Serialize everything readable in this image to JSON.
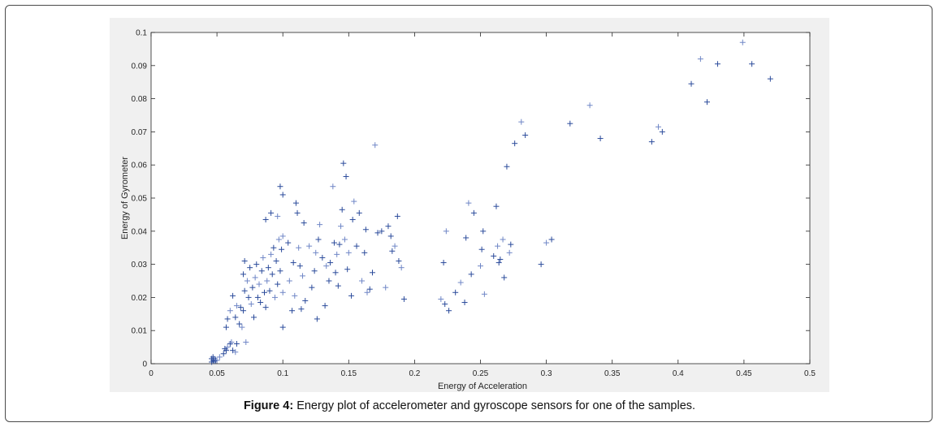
{
  "caption": {
    "label": "Figure 4:",
    "text": " Energy plot of accelerometer and gyroscope sensors for one of the samples."
  },
  "colors": {
    "marker": "#2b4b9b",
    "marker_light": "#6f86c6",
    "axis": "#262626",
    "panel_bg": "#f0f0f0",
    "plot_bg": "#ffffff"
  },
  "chart_data": {
    "type": "scatter",
    "xlabel": "Energy of Acceleration",
    "ylabel": "Energy of Gyrometer",
    "xlim": [
      0,
      0.5
    ],
    "ylim": [
      0,
      0.1
    ],
    "xticks": [
      "0",
      "0.05",
      "0.1",
      "0.15",
      "0.2",
      "0.25",
      "0.3",
      "0.35",
      "0.4",
      "0.45",
      "0.5"
    ],
    "yticks": [
      "0",
      "0.01",
      "0.02",
      "0.03",
      "0.04",
      "0.05",
      "0.06",
      "0.07",
      "0.08",
      "0.09",
      "0.1"
    ],
    "grid": false,
    "marker": "+",
    "points": [
      [
        0.046,
        0.0005
      ],
      [
        0.047,
        0.001
      ],
      [
        0.048,
        0.0015
      ],
      [
        0.049,
        0.001
      ],
      [
        0.047,
        0.002
      ],
      [
        0.05,
        0.001
      ],
      [
        0.046,
        0.0015
      ],
      [
        0.048,
        0.0008
      ],
      [
        0.052,
        0.002
      ],
      [
        0.055,
        0.003
      ],
      [
        0.057,
        0.004
      ],
      [
        0.058,
        0.005
      ],
      [
        0.06,
        0.006
      ],
      [
        0.062,
        0.004
      ],
      [
        0.064,
        0.0035
      ],
      [
        0.065,
        0.006
      ],
      [
        0.056,
        0.0045
      ],
      [
        0.061,
        0.0065
      ],
      [
        0.057,
        0.011
      ],
      [
        0.058,
        0.0135
      ],
      [
        0.06,
        0.016
      ],
      [
        0.062,
        0.0205
      ],
      [
        0.064,
        0.014
      ],
      [
        0.065,
        0.0175
      ],
      [
        0.067,
        0.012
      ],
      [
        0.068,
        0.017
      ],
      [
        0.069,
        0.011
      ],
      [
        0.07,
        0.016
      ],
      [
        0.071,
        0.022
      ],
      [
        0.072,
        0.0065
      ],
      [
        0.07,
        0.027
      ],
      [
        0.071,
        0.031
      ],
      [
        0.073,
        0.025
      ],
      [
        0.074,
        0.02
      ],
      [
        0.075,
        0.029
      ],
      [
        0.076,
        0.018
      ],
      [
        0.077,
        0.023
      ],
      [
        0.078,
        0.014
      ],
      [
        0.079,
        0.026
      ],
      [
        0.08,
        0.03
      ],
      [
        0.081,
        0.02
      ],
      [
        0.082,
        0.024
      ],
      [
        0.083,
        0.0185
      ],
      [
        0.084,
        0.028
      ],
      [
        0.085,
        0.032
      ],
      [
        0.086,
        0.0215
      ],
      [
        0.087,
        0.017
      ],
      [
        0.088,
        0.025
      ],
      [
        0.089,
        0.029
      ],
      [
        0.09,
        0.022
      ],
      [
        0.091,
        0.033
      ],
      [
        0.092,
        0.027
      ],
      [
        0.093,
        0.035
      ],
      [
        0.094,
        0.02
      ],
      [
        0.095,
        0.031
      ],
      [
        0.096,
        0.024
      ],
      [
        0.097,
        0.0375
      ],
      [
        0.098,
        0.028
      ],
      [
        0.099,
        0.0345
      ],
      [
        0.1,
        0.0215
      ],
      [
        0.087,
        0.0435
      ],
      [
        0.091,
        0.0455
      ],
      [
        0.096,
        0.0445
      ],
      [
        0.098,
        0.0535
      ],
      [
        0.1,
        0.051
      ],
      [
        0.1,
        0.0385
      ],
      [
        0.1,
        0.011
      ],
      [
        0.104,
        0.0365
      ],
      [
        0.105,
        0.025
      ],
      [
        0.107,
        0.016
      ],
      [
        0.108,
        0.0305
      ],
      [
        0.109,
        0.0205
      ],
      [
        0.11,
        0.0485
      ],
      [
        0.111,
        0.0455
      ],
      [
        0.112,
        0.035
      ],
      [
        0.113,
        0.0295
      ],
      [
        0.114,
        0.0165
      ],
      [
        0.115,
        0.0265
      ],
      [
        0.116,
        0.0425
      ],
      [
        0.117,
        0.019
      ],
      [
        0.12,
        0.0355
      ],
      [
        0.122,
        0.023
      ],
      [
        0.124,
        0.028
      ],
      [
        0.125,
        0.0335
      ],
      [
        0.126,
        0.0135
      ],
      [
        0.127,
        0.0375
      ],
      [
        0.128,
        0.042
      ],
      [
        0.13,
        0.032
      ],
      [
        0.132,
        0.0175
      ],
      [
        0.133,
        0.0295
      ],
      [
        0.135,
        0.025
      ],
      [
        0.136,
        0.0305
      ],
      [
        0.138,
        0.0535
      ],
      [
        0.139,
        0.0365
      ],
      [
        0.14,
        0.0275
      ],
      [
        0.141,
        0.033
      ],
      [
        0.142,
        0.0235
      ],
      [
        0.143,
        0.036
      ],
      [
        0.144,
        0.0415
      ],
      [
        0.145,
        0.0465
      ],
      [
        0.146,
        0.0605
      ],
      [
        0.147,
        0.0375
      ],
      [
        0.148,
        0.0565
      ],
      [
        0.149,
        0.0285
      ],
      [
        0.15,
        0.0335
      ],
      [
        0.152,
        0.0205
      ],
      [
        0.153,
        0.0435
      ],
      [
        0.154,
        0.049
      ],
      [
        0.156,
        0.0355
      ],
      [
        0.158,
        0.0455
      ],
      [
        0.16,
        0.025
      ],
      [
        0.162,
        0.0335
      ],
      [
        0.163,
        0.0405
      ],
      [
        0.164,
        0.0215
      ],
      [
        0.166,
        0.0225
      ],
      [
        0.168,
        0.0275
      ],
      [
        0.17,
        0.066
      ],
      [
        0.172,
        0.0395
      ],
      [
        0.175,
        0.04
      ],
      [
        0.178,
        0.023
      ],
      [
        0.18,
        0.0415
      ],
      [
        0.182,
        0.0385
      ],
      [
        0.185,
        0.0355
      ],
      [
        0.187,
        0.0445
      ],
      [
        0.188,
        0.031
      ],
      [
        0.19,
        0.029
      ],
      [
        0.192,
        0.0195
      ],
      [
        0.183,
        0.034
      ],
      [
        0.22,
        0.0195
      ],
      [
        0.222,
        0.0305
      ],
      [
        0.223,
        0.018
      ],
      [
        0.224,
        0.04
      ],
      [
        0.226,
        0.016
      ],
      [
        0.231,
        0.0215
      ],
      [
        0.235,
        0.0245
      ],
      [
        0.238,
        0.0185
      ],
      [
        0.239,
        0.038
      ],
      [
        0.241,
        0.0485
      ],
      [
        0.243,
        0.027
      ],
      [
        0.245,
        0.0455
      ],
      [
        0.25,
        0.0295
      ],
      [
        0.251,
        0.0345
      ],
      [
        0.252,
        0.04
      ],
      [
        0.253,
        0.021
      ],
      [
        0.26,
        0.0325
      ],
      [
        0.262,
        0.0475
      ],
      [
        0.263,
        0.0355
      ],
      [
        0.264,
        0.0305
      ],
      [
        0.265,
        0.0315
      ],
      [
        0.267,
        0.0375
      ],
      [
        0.268,
        0.026
      ],
      [
        0.27,
        0.0595
      ],
      [
        0.272,
        0.0335
      ],
      [
        0.273,
        0.036
      ],
      [
        0.276,
        0.0665
      ],
      [
        0.281,
        0.073
      ],
      [
        0.284,
        0.069
      ],
      [
        0.296,
        0.03
      ],
      [
        0.3,
        0.0365
      ],
      [
        0.304,
        0.0375
      ],
      [
        0.318,
        0.0725
      ],
      [
        0.333,
        0.078
      ],
      [
        0.341,
        0.068
      ],
      [
        0.38,
        0.067
      ],
      [
        0.385,
        0.0715
      ],
      [
        0.388,
        0.07
      ],
      [
        0.41,
        0.0845
      ],
      [
        0.417,
        0.092
      ],
      [
        0.422,
        0.079
      ],
      [
        0.43,
        0.0905
      ],
      [
        0.449,
        0.097
      ],
      [
        0.456,
        0.0905
      ],
      [
        0.47,
        0.086
      ]
    ]
  }
}
